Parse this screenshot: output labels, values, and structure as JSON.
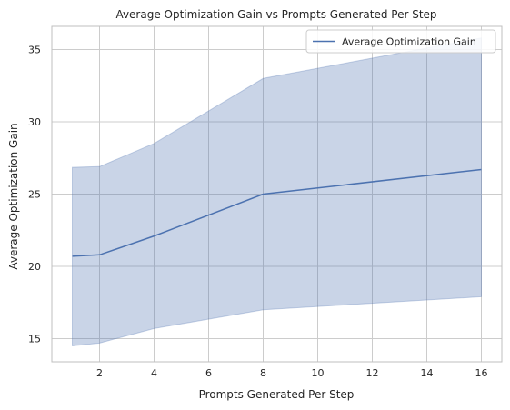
{
  "chart_data": {
    "type": "line",
    "title": "Average Optimization Gain vs Prompts Generated Per Step",
    "xlabel": "Prompts Generated Per Step",
    "ylabel": "Average Optimization Gain",
    "xlim": [
      0.25,
      16.75
    ],
    "ylim": [
      13.4,
      36.6
    ],
    "xticks": [
      2,
      4,
      6,
      8,
      10,
      12,
      14,
      16
    ],
    "yticks": [
      15,
      20,
      25,
      30,
      35
    ],
    "grid": true,
    "legend_position": "top-right",
    "series": [
      {
        "name": "Average Optimization Gain",
        "color": "#4c72b0",
        "x": [
          1,
          2,
          4,
          8,
          16
        ],
        "y": [
          20.7,
          20.8,
          22.1,
          25.0,
          26.7
        ],
        "band_lower": [
          14.5,
          14.7,
          15.7,
          17.0,
          17.9
        ],
        "band_upper": [
          26.85,
          26.9,
          28.5,
          33.0,
          35.8
        ]
      }
    ]
  }
}
